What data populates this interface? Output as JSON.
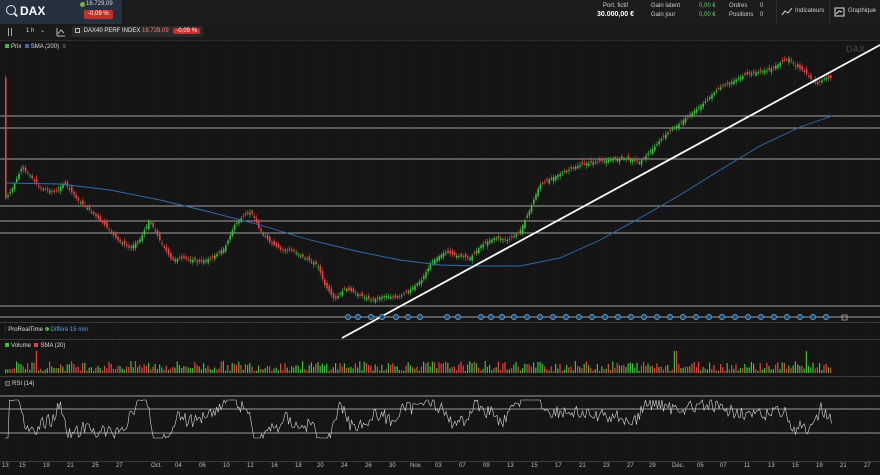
{
  "header": {
    "symbol": "DAX",
    "last_price": "16.729,09",
    "change_pct": "-0,09 %",
    "portfolio_label": "Port. fictif",
    "portfolio_value": "30.000,00 €",
    "latent_gain_label": "Gain latent",
    "latent_gain_value": "0,00 €",
    "day_gain_label": "Gain jour",
    "day_gain_value": "0,00 €",
    "orders_label": "Ordres",
    "orders_value": "0",
    "positions_label": "Positions",
    "positions_value": "0",
    "indicators_button": "Indicateurs",
    "chart_button": "Graphique"
  },
  "toolbar": {
    "timeframe": "1 h",
    "instrument_name": "DAX40 PERF INDEX",
    "instrument_price": "16.729,09",
    "instrument_change": "-0,09 %"
  },
  "price_panel": {
    "legend_price": "Prix",
    "legend_sma": "SMA (200)",
    "watermark": "DAX",
    "colors": {
      "up": "#3fbf3f",
      "down": "#e04545",
      "sma": "#2f6fb0",
      "trendline": "#ffffff"
    }
  },
  "events_panel": {
    "label": "ProRealTime",
    "sublabel": "Différé 15 min"
  },
  "volume_panel": {
    "legend_volume": "Volume",
    "legend_sma": "SMA (20)"
  },
  "rsi_panel": {
    "legend": "RSI (14)"
  },
  "x_axis": {
    "ticks": [
      "13",
      "15",
      "19",
      "21",
      "25",
      "27",
      "Oct.",
      "04",
      "06",
      "10",
      "12",
      "16",
      "18",
      "20",
      "24",
      "26",
      "30",
      "Nov.",
      "03",
      "07",
      "09",
      "13",
      "15",
      "17",
      "21",
      "23",
      "27",
      "29",
      "Déc.",
      "05",
      "07",
      "11",
      "13",
      "15",
      "19",
      "21",
      "27"
    ]
  }
}
